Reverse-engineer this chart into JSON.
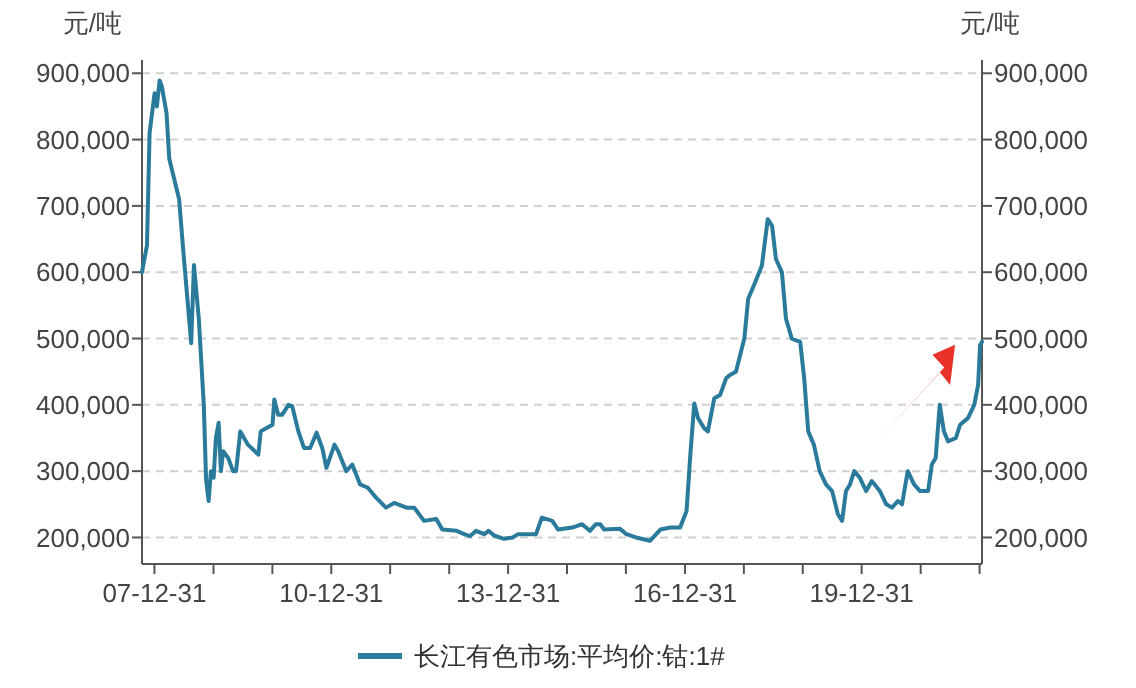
{
  "chart_data": {
    "type": "line",
    "ylabel": "元/吨",
    "y2label": "元/吨",
    "xlim": [
      "2007-10-15",
      "2022-01-15"
    ],
    "xticks": [
      {
        "value": "2007-12-31",
        "label": "07-12-31"
      },
      {
        "value": "2008-12-31",
        "label": null
      },
      {
        "value": "2009-12-31",
        "label": null
      },
      {
        "value": "2010-12-31",
        "label": "10-12-31"
      },
      {
        "value": "2011-12-31",
        "label": null
      },
      {
        "value": "2012-12-31",
        "label": null
      },
      {
        "value": "2013-12-31",
        "label": "13-12-31"
      },
      {
        "value": "2014-12-31",
        "label": null
      },
      {
        "value": "2015-12-31",
        "label": null
      },
      {
        "value": "2016-12-31",
        "label": "16-12-31"
      },
      {
        "value": "2017-12-31",
        "label": null
      },
      {
        "value": "2018-12-31",
        "label": null
      },
      {
        "value": "2019-12-31",
        "label": "19-12-31"
      },
      {
        "value": "2020-12-31",
        "label": null
      },
      {
        "value": "2021-12-31",
        "label": null
      }
    ],
    "ylim": [
      160000,
      920000
    ],
    "yticks": [
      {
        "value": 200000,
        "label": "200,000"
      },
      {
        "value": 300000,
        "label": "300,000"
      },
      {
        "value": 400000,
        "label": "400,000"
      },
      {
        "value": 500000,
        "label": "500,000"
      },
      {
        "value": 600000,
        "label": "600,000"
      },
      {
        "value": 700000,
        "label": "700,000"
      },
      {
        "value": 800000,
        "label": "800,000"
      },
      {
        "value": 900000,
        "label": "900,000"
      }
    ],
    "y2lim": [
      160000,
      920000
    ],
    "y2ticks": [
      {
        "value": 200000,
        "label": "200,000"
      },
      {
        "value": 300000,
        "label": "300,000"
      },
      {
        "value": 400000,
        "label": "400,000"
      },
      {
        "value": 500000,
        "label": "500,000"
      },
      {
        "value": 600000,
        "label": "600,000"
      },
      {
        "value": 700000,
        "label": "700,000"
      },
      {
        "value": 800000,
        "label": "800,000"
      },
      {
        "value": 900000,
        "label": "900,000"
      }
    ],
    "grid": "y",
    "legend": "bottom",
    "marker": "none",
    "line_style": "solid",
    "x": [
      "2007-10-15",
      "2007-11-15",
      "2007-12-01",
      "2008-01-01",
      "2008-01-15",
      "2008-02-01",
      "2008-02-15",
      "2008-03-15",
      "2008-04-01",
      "2008-06-01",
      "2008-07-01",
      "2008-08-15",
      "2008-09-01",
      "2008-10-01",
      "2008-11-01",
      "2008-11-15",
      "2008-12-01",
      "2008-12-15",
      "2009-01-01",
      "2009-01-15",
      "2009-02-01",
      "2009-02-15",
      "2009-03-01",
      "2009-04-01",
      "2009-05-01",
      "2009-05-20",
      "2009-06-15",
      "2009-08-01",
      "2009-10-05",
      "2009-10-20",
      "2009-11-25",
      "2010-01-01",
      "2010-01-12",
      "2010-02-05",
      "2010-03-01",
      "2010-04-10",
      "2010-05-03",
      "2010-06-10",
      "2010-07-15",
      "2010-08-22",
      "2010-10-01",
      "2010-11-05",
      "2010-12-01",
      "2011-01-20",
      "2011-02-12",
      "2011-04-03",
      "2011-05-10",
      "2011-06-28",
      "2011-08-15",
      "2011-10-05",
      "2011-12-05",
      "2012-01-25",
      "2012-04-10",
      "2012-05-28",
      "2012-07-28",
      "2012-10-12",
      "2012-11-18",
      "2013-02-15",
      "2013-04-03",
      "2013-05-10",
      "2013-06-15",
      "2013-08-05",
      "2013-09-01",
      "2013-10-05",
      "2013-12-05",
      "2014-01-28",
      "2014-03-03",
      "2014-06-22",
      "2014-07-28",
      "2014-10-01",
      "2014-11-06",
      "2015-02-03",
      "2015-04-03",
      "2015-05-22",
      "2015-06-28",
      "2015-07-25",
      "2015-08-18",
      "2015-11-25",
      "2016-01-03",
      "2016-03-03",
      "2016-05-28",
      "2016-08-01",
      "2016-10-01",
      "2016-12-01",
      "2017-01-10",
      "2017-02-03",
      "2017-02-27",
      "2017-03-22",
      "2017-04-28",
      "2017-05-22",
      "2017-07-01",
      "2017-08-06",
      "2017-09-12",
      "2017-10-06",
      "2017-11-12",
      "2018-01-03",
      "2018-01-27",
      "2018-03-03",
      "2018-04-22",
      "2018-05-28",
      "2018-06-24",
      "2018-07-18",
      "2018-08-24",
      "2018-09-18",
      "2018-10-24",
      "2018-12-15",
      "2019-01-09",
      "2019-02-03",
      "2019-03-10",
      "2019-04-15",
      "2019-05-24",
      "2019-07-01",
      "2019-08-06",
      "2019-09-01",
      "2019-09-25",
      "2019-10-20",
      "2019-11-15",
      "2019-12-20",
      "2020-01-28",
      "2020-03-03",
      "2020-04-22",
      "2020-06-01",
      "2020-07-06",
      "2020-08-12",
      "2020-09-06",
      "2020-10-12",
      "2020-11-20",
      "2020-12-27",
      "2021-02-15",
      "2021-03-10",
      "2021-04-03",
      "2021-04-28",
      "2021-05-24",
      "2021-06-18",
      "2021-08-06",
      "2021-09-01",
      "2021-10-20",
      "2021-11-28",
      "2021-12-22",
      "2022-01-03",
      "2022-01-15"
    ],
    "series": [
      {
        "name": "长江有色市场:平均价:钴:1#",
        "color": "#2a7b9b",
        "values": [
          600000,
          641000,
          810000,
          870000,
          850000,
          889000,
          880000,
          840000,
          771000,
          710000,
          620000,
          493000,
          611000,
          530000,
          400000,
          288000,
          255000,
          300000,
          290000,
          350000,
          373000,
          300000,
          330000,
          320000,
          300000,
          300000,
          360000,
          340000,
          325000,
          360000,
          365000,
          370000,
          408000,
          385000,
          385000,
          400000,
          398000,
          360000,
          335000,
          335000,
          358000,
          335000,
          305000,
          340000,
          330000,
          300000,
          310000,
          280000,
          275000,
          260000,
          245000,
          252000,
          245000,
          245000,
          225000,
          228000,
          212000,
          210000,
          205000,
          202000,
          210000,
          205000,
          210000,
          203000,
          198000,
          200000,
          205000,
          205000,
          230000,
          225000,
          212000,
          215000,
          220000,
          210000,
          220000,
          220000,
          212000,
          213000,
          205000,
          200000,
          195000,
          212000,
          215000,
          215000,
          240000,
          327000,
          402000,
          380000,
          365000,
          360000,
          410000,
          415000,
          440000,
          445000,
          450000,
          500000,
          560000,
          580000,
          610000,
          680000,
          670000,
          620000,
          600000,
          530000,
          500000,
          495000,
          440000,
          360000,
          340000,
          300000,
          280000,
          270000,
          235000,
          225000,
          270000,
          280000,
          300000,
          290000,
          270000,
          285000,
          270000,
          250000,
          245000,
          255000,
          250000,
          300000,
          280000,
          270000,
          270000,
          310000,
          320000,
          400000,
          360000,
          345000,
          350000,
          370000,
          380000,
          400000,
          430000,
          490000,
          495000
        ]
      }
    ]
  }
}
